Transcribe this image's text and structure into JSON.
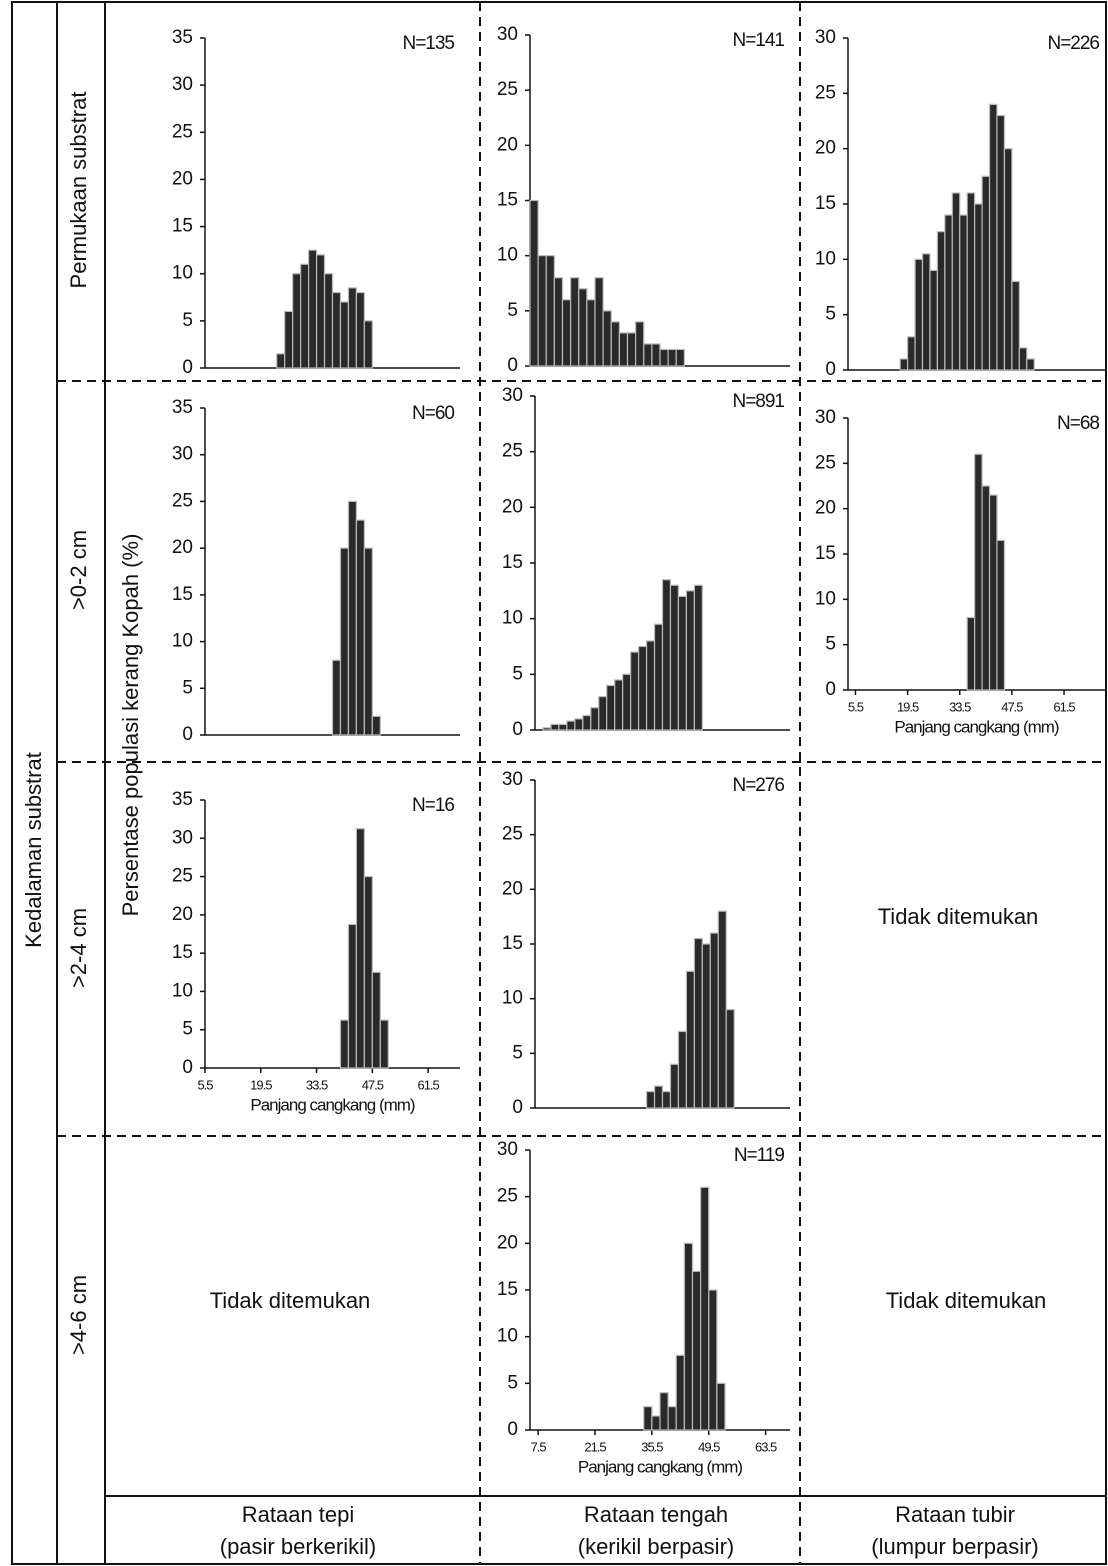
{
  "side_label": "Kedalaman substrat",
  "shared_ylabel": "Persentase populasi kerang Kopah (%)",
  "row_labels": [
    "Permukaan substrat",
    ">0-2 cm",
    ">2-4 cm",
    ">4-6 cm"
  ],
  "column_labels": [
    {
      "title": "Rataan tepi",
      "subtitle": "(pasir berkerikil)"
    },
    {
      "title": "Rataan tengah",
      "subtitle": "(kerikil berpasir)"
    },
    {
      "title": "Rataan tubir",
      "subtitle": "(lumpur berpasir)"
    }
  ],
  "empty_cells": [
    "Tidak ditemukan",
    "Tidak ditemukan",
    "Tidak ditemukan"
  ],
  "chart_data": [
    {
      "type": "histogram",
      "annotation": "N=135",
      "color": "#2a2a2a",
      "bins": [
        23.5,
        25.5,
        27.5,
        29.5,
        31.5,
        33.5,
        35.5,
        37.5,
        39.5,
        41.5,
        43.5,
        45.5,
        47.5
      ],
      "values": [
        1.5,
        6,
        10,
        11,
        12.5,
        12,
        10,
        8,
        7,
        8.5,
        8,
        5
      ],
      "xlim": [
        5.5,
        69.5
      ],
      "ylim": [
        0,
        35
      ],
      "yticks": [
        0,
        5,
        10,
        15,
        20,
        25,
        30,
        35
      ]
    },
    {
      "type": "histogram",
      "annotation": "N=141",
      "color": "#2a2a2a",
      "bins": [
        5.5,
        7.5,
        9.5,
        11.5,
        13.5,
        15.5,
        17.5,
        19.5,
        21.5,
        23.5,
        25.5,
        27.5,
        29.5,
        31.5,
        33.5,
        35.5,
        37.5,
        39.5,
        41.5,
        43.5
      ],
      "values": [
        15,
        10,
        10,
        8,
        6,
        8,
        7,
        6,
        8,
        5,
        4,
        3,
        3,
        4,
        2,
        2,
        1.5,
        1.5,
        1.5
      ],
      "xlim": [
        5.5,
        69.5
      ],
      "ylim": [
        0,
        30
      ],
      "yticks": [
        0,
        5,
        10,
        15,
        20,
        25,
        30
      ]
    },
    {
      "type": "histogram",
      "annotation": "N=226",
      "color": "#2a2a2a",
      "bins": [
        17.5,
        19.5,
        21.5,
        23.5,
        25.5,
        27.5,
        29.5,
        31.5,
        33.5,
        35.5,
        37.5,
        39.5,
        41.5,
        43.5,
        45.5,
        47.5,
        49.5,
        51.5,
        53.5
      ],
      "values": [
        1,
        3,
        10,
        10.5,
        9,
        12.5,
        14,
        16,
        14,
        16,
        15,
        17.5,
        24,
        23,
        20,
        8,
        2,
        1
      ],
      "xlim": [
        3.5,
        72.5
      ],
      "ylim": [
        0,
        30
      ],
      "yticks": [
        0,
        5,
        10,
        15,
        20,
        25,
        30
      ]
    },
    {
      "type": "histogram",
      "annotation": "N=60",
      "color": "#2a2a2a",
      "bins": [
        37.5,
        39.5,
        41.5,
        43.5,
        45.5,
        47.5,
        49.5
      ],
      "values": [
        8,
        20,
        25,
        23,
        20,
        2
      ],
      "xlim": [
        5.5,
        69.5
      ],
      "ylim": [
        0,
        35
      ],
      "yticks": [
        0,
        5,
        10,
        15,
        20,
        25,
        30,
        35
      ]
    },
    {
      "type": "histogram",
      "annotation": "N=891",
      "color": "#2a2a2a",
      "bins": [
        7.5,
        9.5,
        11.5,
        13.5,
        15.5,
        17.5,
        19.5,
        21.5,
        23.5,
        25.5,
        27.5,
        29.5,
        31.5,
        33.5,
        35.5,
        37.5,
        39.5,
        41.5,
        43.5,
        45.5,
        47.5
      ],
      "values": [
        0.2,
        0.5,
        0.5,
        0.8,
        1,
        1.3,
        2,
        3,
        4,
        4.5,
        5,
        7,
        7.5,
        8,
        9.5,
        13.5,
        13,
        12,
        12.5,
        13
      ],
      "xlim": [
        5.5,
        69.5
      ],
      "ylim": [
        0,
        30
      ],
      "yticks": [
        0,
        5,
        10,
        15,
        20,
        25,
        30
      ]
    },
    {
      "type": "histogram",
      "annotation": "N=68",
      "color": "#2a2a2a",
      "bins": [
        35.5,
        37.5,
        39.5,
        41.5,
        43.5,
        45.5
      ],
      "values": [
        8,
        26,
        22.5,
        21.5,
        16.5
      ],
      "xlim": [
        3.5,
        72.5
      ],
      "ylim": [
        0,
        30
      ],
      "yticks": [
        0,
        5,
        10,
        15,
        20,
        25,
        30
      ],
      "xticks": [
        5.5,
        19.5,
        33.5,
        47.5,
        61.5
      ],
      "xlabel": "Panjang cangkang (mm)"
    },
    {
      "type": "histogram",
      "annotation": "N=16",
      "color": "#2a2a2a",
      "bins": [
        39.5,
        41.5,
        43.5,
        45.5,
        47.5,
        49.5,
        51.5
      ],
      "values": [
        6.25,
        18.75,
        31.25,
        25,
        12.5,
        6.25
      ],
      "xlim": [
        5.5,
        69.5
      ],
      "ylim": [
        0,
        35
      ],
      "yticks": [
        0,
        5,
        10,
        15,
        20,
        25,
        30,
        35
      ],
      "xticks": [
        5.5,
        19.5,
        33.5,
        47.5,
        61.5
      ],
      "xlabel": "Panjang cangkang (mm)"
    },
    {
      "type": "histogram",
      "annotation": "N=276",
      "color": "#2a2a2a",
      "bins": [
        33.5,
        35.5,
        37.5,
        39.5,
        41.5,
        43.5,
        45.5,
        47.5,
        49.5,
        51.5,
        53.5,
        55.5
      ],
      "values": [
        1.5,
        2,
        1.5,
        4,
        7,
        12.5,
        15.5,
        15,
        16,
        18,
        9
      ],
      "xlim": [
        5.5,
        69.5
      ],
      "ylim": [
        0,
        30
      ],
      "yticks": [
        0,
        5,
        10,
        15,
        20,
        25,
        30
      ]
    },
    {
      "type": "histogram",
      "annotation": "N=119",
      "color": "#2a2a2a",
      "bins": [
        33.5,
        35.5,
        37.5,
        39.5,
        41.5,
        43.5,
        45.5,
        47.5,
        49.5,
        51.5,
        53.5
      ],
      "values": [
        2.5,
        1.5,
        4,
        2.5,
        8,
        20,
        17,
        26,
        15,
        5
      ],
      "xlim": [
        5.5,
        69.5
      ],
      "ylim": [
        0,
        30
      ],
      "yticks": [
        0,
        5,
        10,
        15,
        20,
        25,
        30
      ],
      "xticks": [
        7.5,
        21.5,
        35.5,
        49.5,
        63.5
      ],
      "xlabel": "Panjang cangkang (mm)"
    }
  ]
}
